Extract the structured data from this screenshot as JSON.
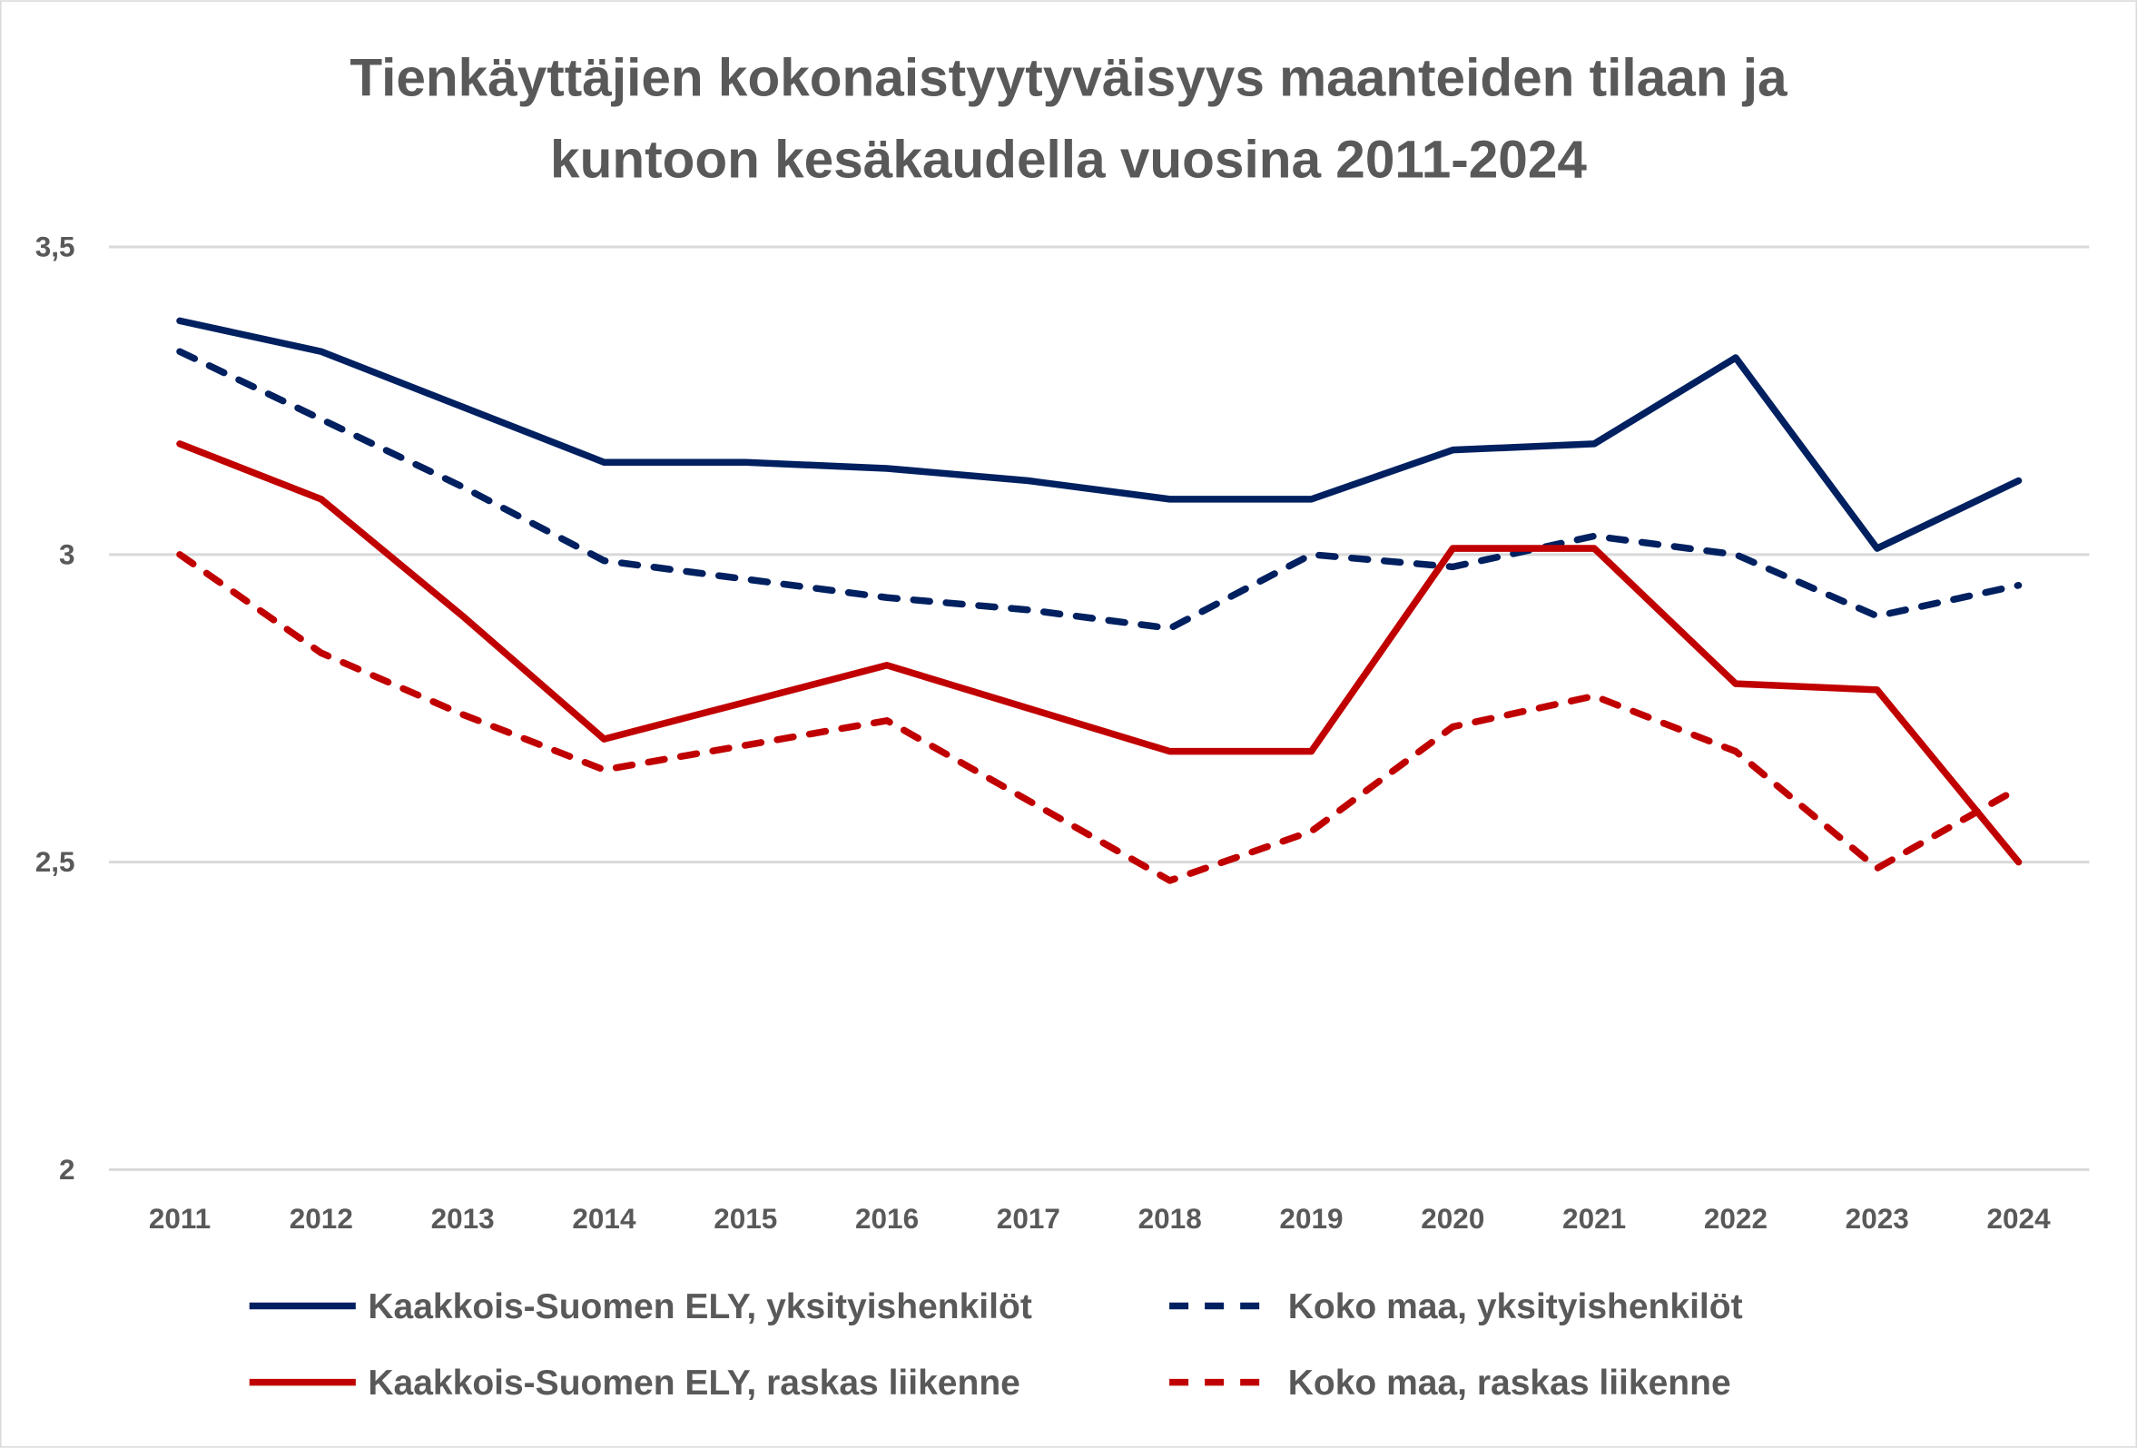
{
  "chart_data": {
    "type": "line",
    "title": "Tienkäyttäjien kokonaistyytyväisyys maanteiden tilaan ja kuntoon kesäkaudella vuosina 2011-2024",
    "title_lines": [
      "Tienkäyttäjien kokonaistyytyväisyys maanteiden tilaan ja",
      "kuntoon kesäkaudella vuosina 2011-2024"
    ],
    "xlabel": "",
    "ylabel": "",
    "categories": [
      "2011",
      "2012",
      "2013",
      "2014",
      "2015",
      "2016",
      "2017",
      "2018",
      "2019",
      "2020",
      "2021",
      "2022",
      "2023",
      "2024"
    ],
    "ylim": [
      2,
      3.5
    ],
    "yticks": [
      2,
      2.5,
      3,
      3.5
    ],
    "ytick_labels": [
      "2",
      "2,5",
      "3",
      "3,5"
    ],
    "grid": true,
    "legend_position": "bottom",
    "series": [
      {
        "name": "Kaakkois-Suomen ELY, yksityishenkilöt",
        "color": "#002060",
        "dash": "solid",
        "values": [
          3.38,
          3.33,
          3.24,
          3.15,
          3.15,
          3.14,
          3.12,
          3.09,
          3.09,
          3.17,
          3.18,
          3.32,
          3.01,
          3.12
        ]
      },
      {
        "name": "Koko maa, yksityishenkilöt",
        "color": "#002060",
        "dash": "dashed",
        "values": [
          3.33,
          3.22,
          3.11,
          2.99,
          2.96,
          2.93,
          2.91,
          2.88,
          3.0,
          2.98,
          3.03,
          3.0,
          2.9,
          2.95
        ]
      },
      {
        "name": "Kaakkois-Suomen ELY, raskas liikenne",
        "color": "#C00000",
        "dash": "solid",
        "values": [
          3.18,
          3.09,
          2.9,
          2.7,
          2.76,
          2.82,
          2.75,
          2.68,
          2.68,
          3.01,
          3.01,
          2.79,
          2.78,
          2.5
        ]
      },
      {
        "name": "Koko maa, raskas liikenne",
        "color": "#C00000",
        "dash": "dashed",
        "values": [
          3.0,
          2.84,
          2.74,
          2.65,
          2.69,
          2.73,
          2.6,
          2.47,
          2.55,
          2.72,
          2.77,
          2.68,
          2.49,
          2.62
        ]
      }
    ]
  }
}
